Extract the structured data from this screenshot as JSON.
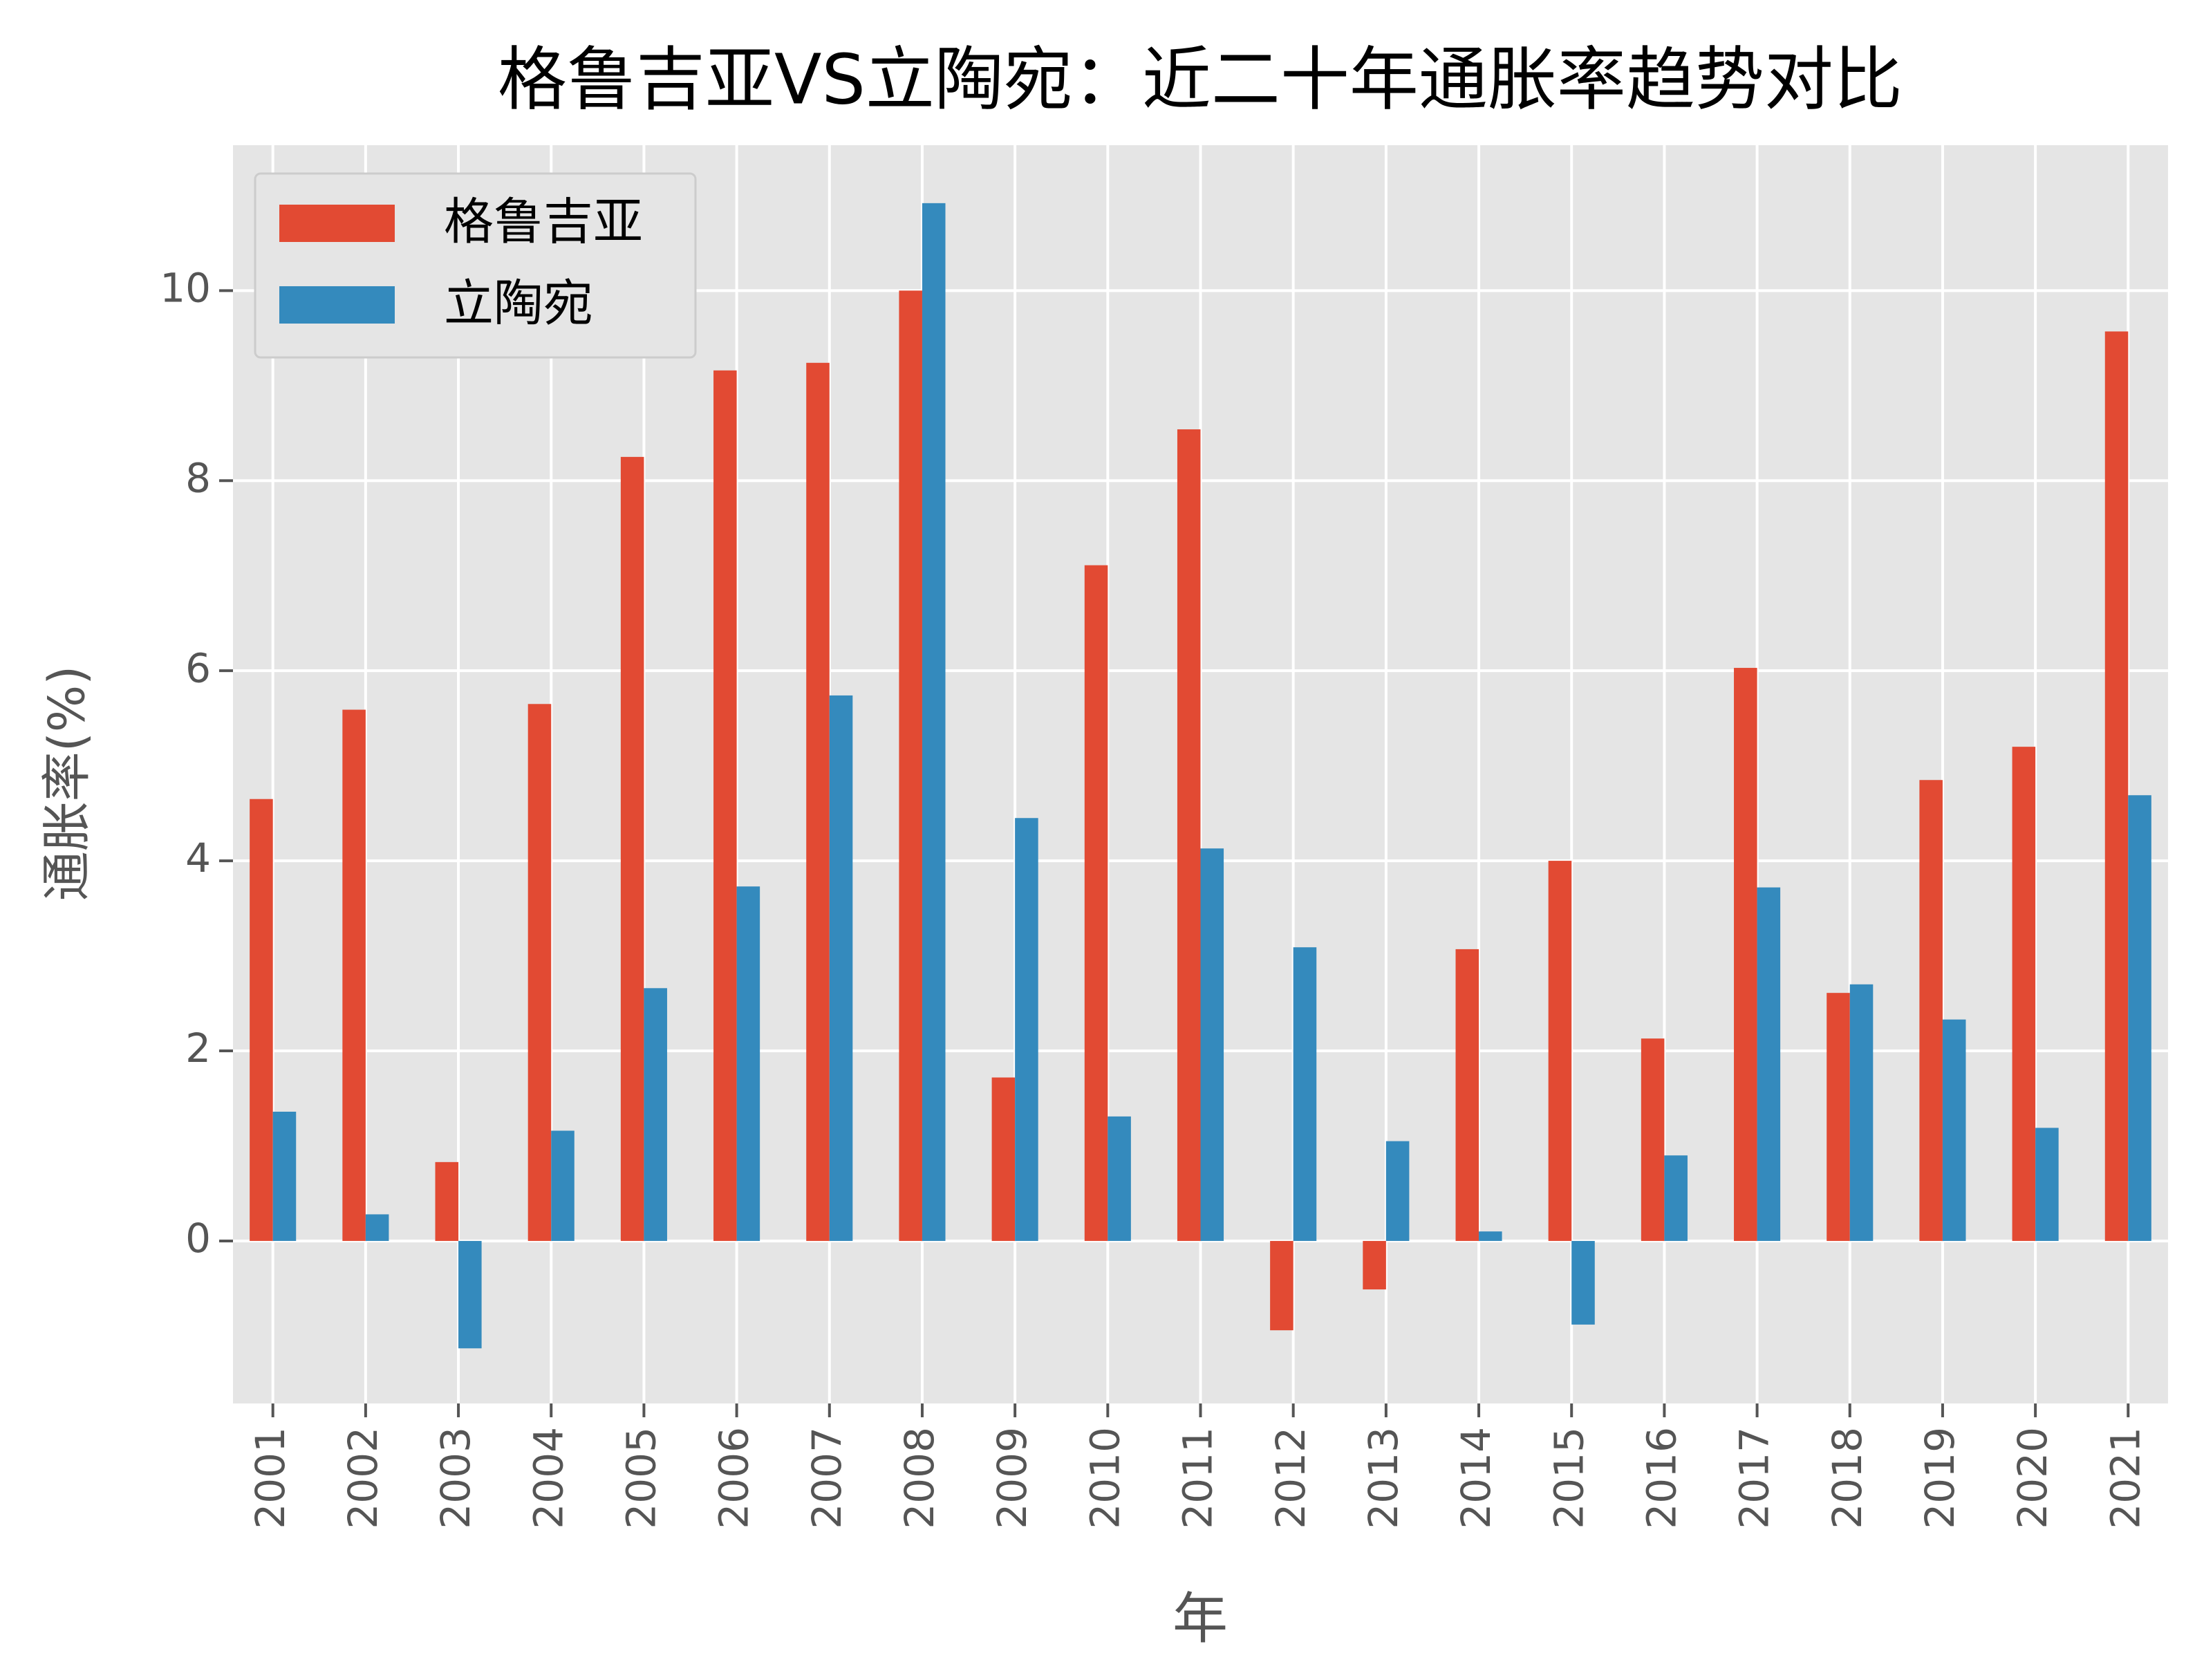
{
  "chart_data": {
    "type": "bar",
    "title": "格鲁吉亚VS立陶宛：近二十年通胀率趋势对比",
    "x_label": "年",
    "y_label": "通胀率(%)",
    "categories": [
      "2001",
      "2002",
      "2003",
      "2004",
      "2005",
      "2006",
      "2007",
      "2008",
      "2009",
      "2010",
      "2011",
      "2012",
      "2013",
      "2014",
      "2015",
      "2016",
      "2017",
      "2018",
      "2019",
      "2020",
      "2021"
    ],
    "series": [
      {
        "name": "格鲁吉亚",
        "color": "#E24A33",
        "values": [
          4.65,
          5.59,
          0.83,
          5.65,
          8.25,
          9.16,
          9.24,
          10.0,
          1.72,
          7.11,
          8.54,
          -0.94,
          -0.51,
          3.07,
          4.0,
          2.13,
          6.03,
          2.61,
          4.85,
          5.2,
          9.57
        ]
      },
      {
        "name": "立陶宛",
        "color": "#348ABD",
        "values": [
          1.36,
          0.28,
          -1.13,
          1.16,
          2.66,
          3.73,
          5.74,
          10.92,
          4.45,
          1.31,
          4.13,
          3.09,
          1.05,
          0.1,
          -0.88,
          0.9,
          3.72,
          2.7,
          2.33,
          1.19,
          4.69
        ]
      }
    ],
    "ylim": [
      -1.71,
      11.53
    ],
    "yticks": [
      0,
      2,
      4,
      6,
      8,
      10
    ],
    "grid": true,
    "legend": "upper left"
  }
}
